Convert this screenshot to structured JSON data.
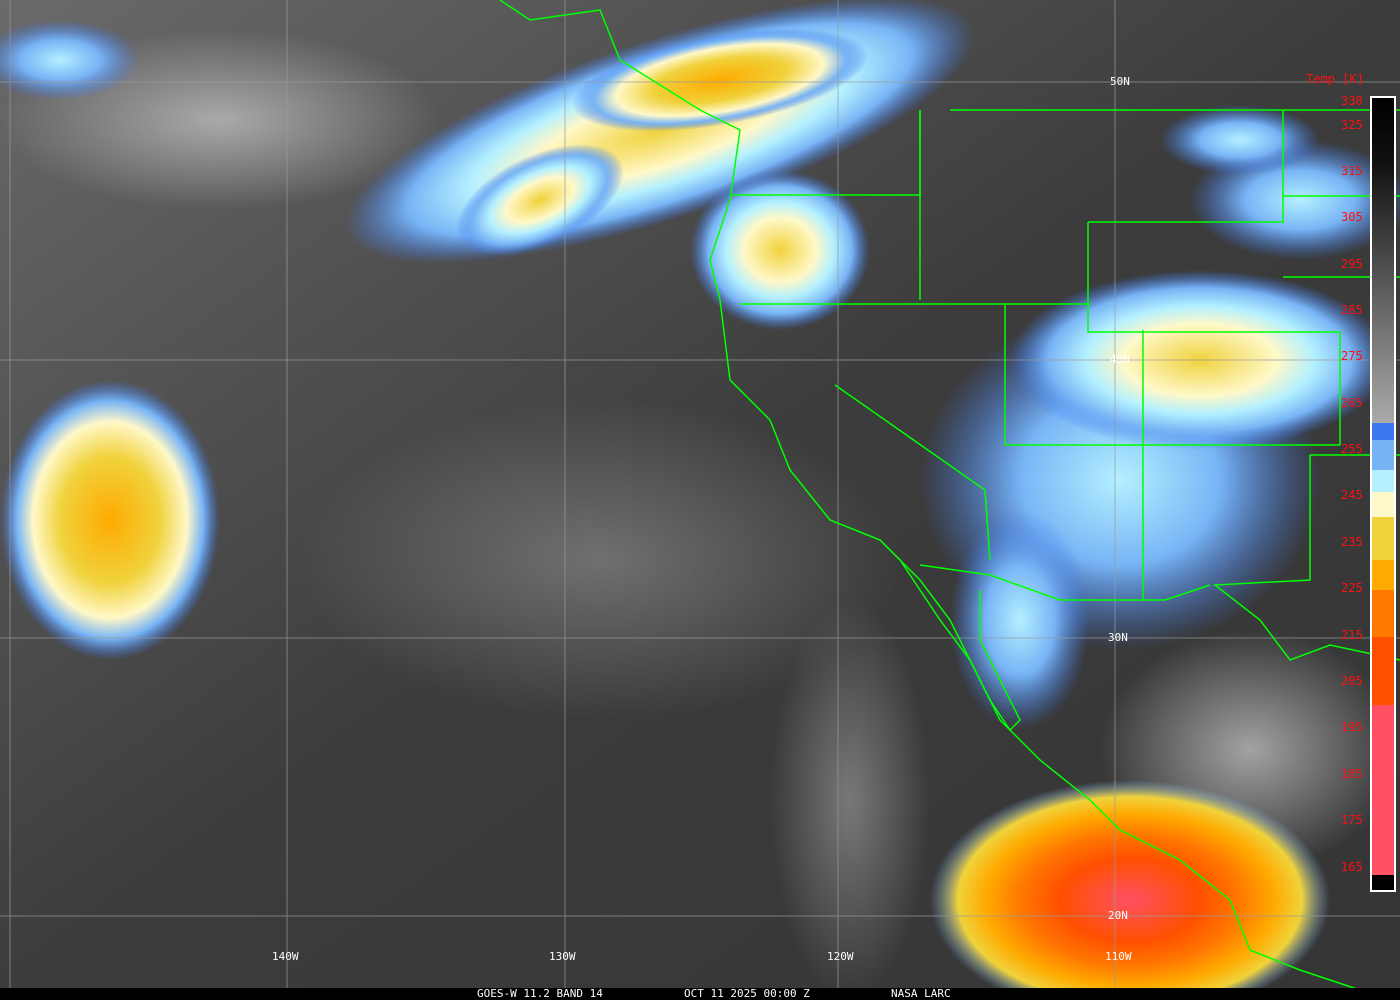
{
  "image": {
    "title": "GOES-W 11.2 BAND 14",
    "datetime": "OCT 11 2025 00:00 Z",
    "credit": "NASA LARC"
  },
  "grid": {
    "lat_labels": [
      "50N",
      "40N",
      "30N",
      "20N"
    ],
    "lon_labels": [
      "140W",
      "130W",
      "120W",
      "110W"
    ]
  },
  "colorbar": {
    "title": "Temp [K]",
    "ticks": [
      "330",
      "325",
      "315",
      "305",
      "295",
      "285",
      "275",
      "265",
      "255",
      "245",
      "235",
      "225",
      "215",
      "205",
      "195",
      "185",
      "175",
      "165"
    ],
    "colors": {
      "warm_top": "#000000",
      "gray": "#a0a0a0",
      "blue": "#3c78f0",
      "light_blue": "#78b4f5",
      "pale_cyan": "#b4f0ff",
      "cream": "#fff8c8",
      "yellow": "#f0d23c",
      "orange": "#ffaa00",
      "dark_orange": "#ff7800",
      "red_orange": "#ff5000",
      "pink": "#ff5064"
    }
  },
  "colors": {
    "boundaries": "#00ff00",
    "grid": "#9a9a9a",
    "labels": "#ffffff",
    "colorbar_labels": "#ff1010"
  }
}
